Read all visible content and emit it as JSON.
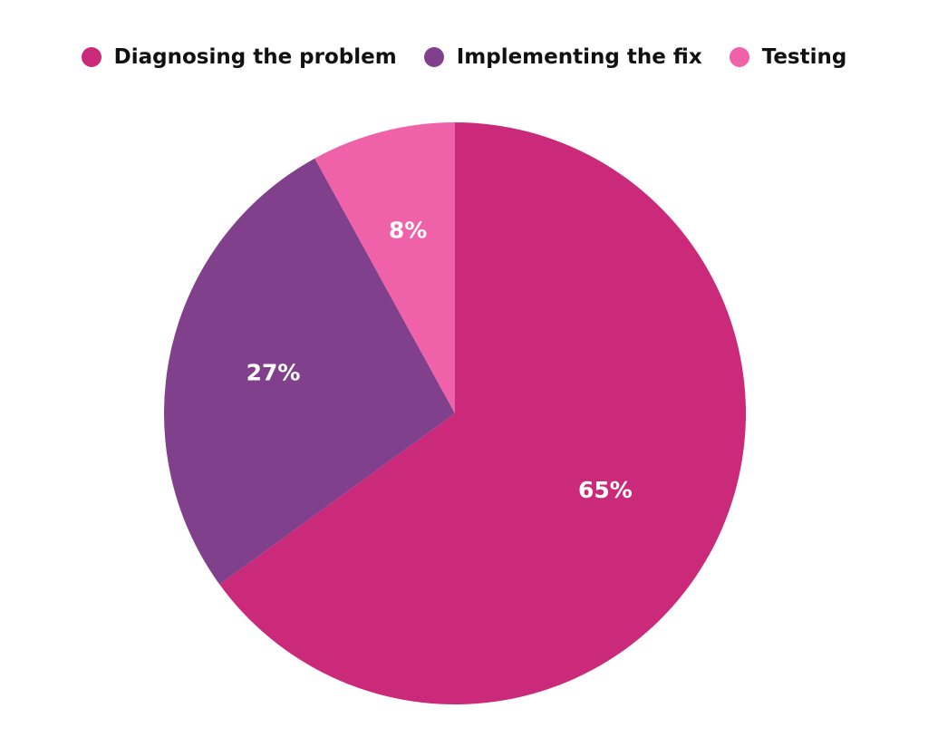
{
  "chart_data": {
    "type": "pie",
    "title": "",
    "legend_position": "top",
    "slices": [
      {
        "label": "Diagnosing the problem",
        "value": 65,
        "display": "65%",
        "color": "#cb2a7b"
      },
      {
        "label": "Implementing the fix",
        "value": 27,
        "display": "27%",
        "color": "#80408c"
      },
      {
        "label": "Testing",
        "value": 8,
        "display": "8%",
        "color": "#ef61a8"
      }
    ]
  }
}
